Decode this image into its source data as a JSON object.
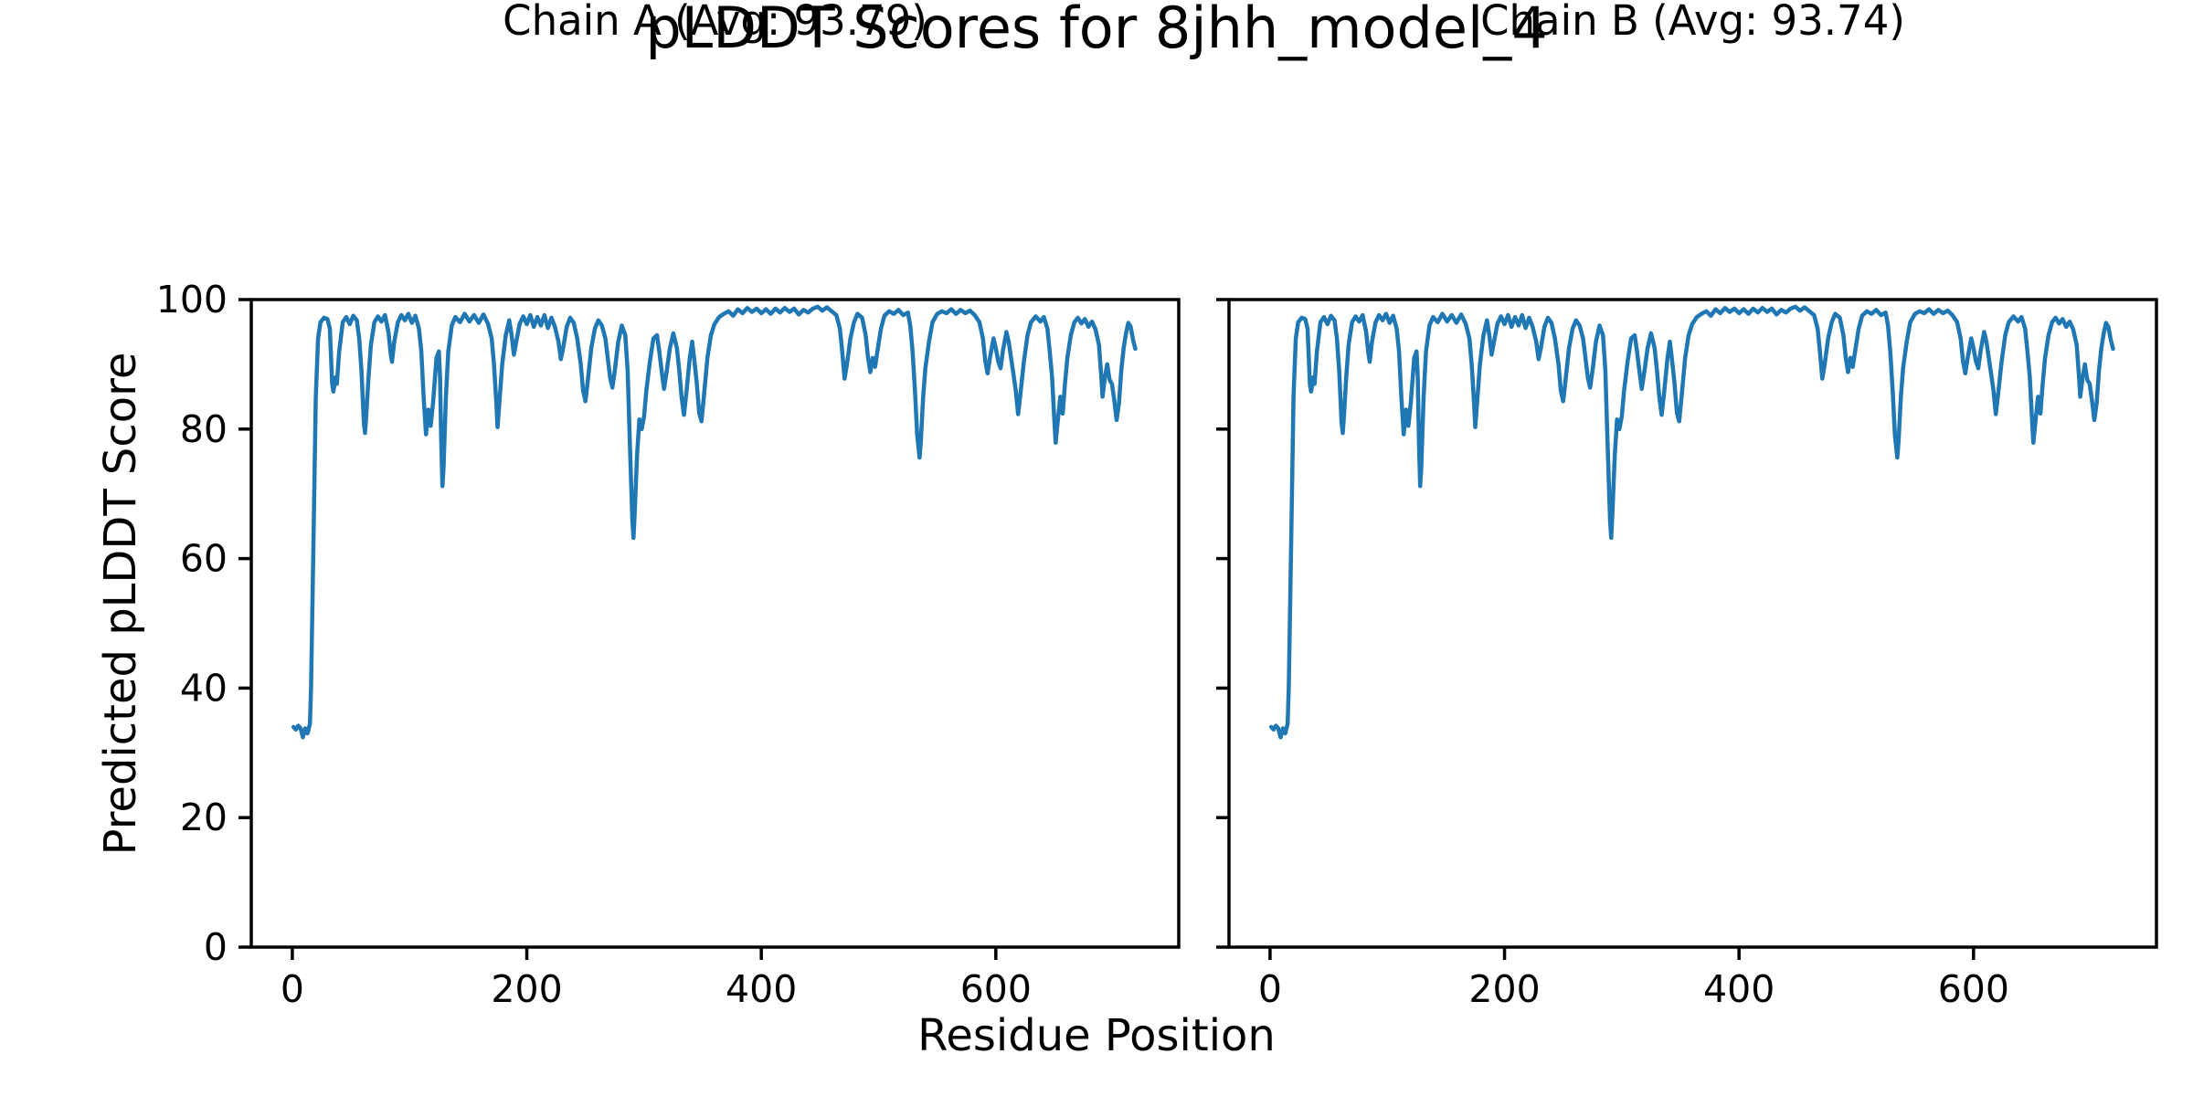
{
  "header": {
    "title": "pLDDT Scores for 8jhh_model_4"
  },
  "axes_shared": {
    "xlabel": "Residue Position",
    "ylabel": "Predicted pLDDT Score"
  },
  "colors": {
    "line": "#1f77b4",
    "axis": "#000000",
    "text": "#000000",
    "background": "#ffffff"
  },
  "chart_data": [
    {
      "type": "line",
      "title": "Chain A (Avg: 93.79)",
      "avg": "93.79",
      "xlabel": "Residue Position",
      "ylabel": "Predicted pLDDT Score",
      "xlim": [
        -35,
        756
      ],
      "ylim": [
        0,
        100
      ],
      "xticks": [
        0,
        200,
        400,
        600
      ],
      "yticks": [
        0,
        20,
        40,
        60,
        80,
        100
      ],
      "show_ytick_labels": true,
      "grid": false,
      "legend": "none",
      "x": [
        1,
        3,
        5,
        7,
        9,
        11,
        13,
        15,
        16,
        18,
        20,
        22,
        24,
        27,
        30,
        32,
        34,
        35,
        37,
        38,
        40,
        43,
        46,
        49,
        52,
        55,
        57,
        59,
        61,
        62,
        63,
        65,
        67,
        70,
        73,
        76,
        79,
        82,
        84,
        85,
        87,
        90,
        93,
        96,
        99,
        102,
        105,
        108,
        110,
        112,
        114,
        116,
        118,
        120,
        123,
        125,
        126,
        127,
        128,
        129,
        131,
        133,
        136,
        139,
        143,
        147,
        151,
        155,
        159,
        163,
        167,
        170,
        172,
        174,
        175,
        177,
        179,
        182,
        185,
        187,
        189,
        191,
        194,
        197,
        200,
        203,
        206,
        209,
        212,
        215,
        218,
        221,
        224,
        227,
        229,
        231,
        234,
        237,
        240,
        243,
        246,
        248,
        250,
        252,
        255,
        258,
        261,
        264,
        267,
        269,
        271,
        273,
        275,
        278,
        281,
        284,
        286,
        288,
        290,
        291,
        292,
        294,
        296,
        298,
        300,
        302,
        305,
        308,
        311,
        313,
        315,
        317,
        319,
        322,
        325,
        328,
        330,
        332,
        334,
        336,
        339,
        341,
        343,
        345,
        347,
        349,
        351,
        354,
        357,
        360,
        364,
        368,
        372,
        376,
        380,
        384,
        388,
        392,
        396,
        400,
        404,
        408,
        412,
        416,
        420,
        424,
        428,
        432,
        436,
        440,
        444,
        448,
        452,
        456,
        460,
        464,
        467,
        469,
        471,
        473,
        476,
        479,
        482,
        486,
        489,
        491,
        493,
        495,
        497,
        499,
        502,
        505,
        509,
        513,
        517,
        521,
        525,
        527,
        529,
        531,
        533,
        535,
        536,
        538,
        540,
        543,
        546,
        550,
        554,
        558,
        562,
        566,
        570,
        574,
        578,
        582,
        586,
        589,
        591,
        593,
        595,
        598,
        600,
        602,
        604,
        606,
        609,
        611,
        613,
        615,
        617,
        619,
        621,
        624,
        627,
        630,
        634,
        638,
        641,
        644,
        646,
        648,
        650,
        651,
        653,
        655,
        656,
        657,
        659,
        661,
        664,
        667,
        670,
        673,
        676,
        679,
        682,
        685,
        688,
        690,
        691,
        693,
        695,
        697,
        699,
        701,
        703,
        705,
        707,
        709,
        711,
        713,
        715,
        717,
        719
      ],
      "y": [
        34,
        33.6,
        34.2,
        33.8,
        32.4,
        33.8,
        33,
        34.5,
        40,
        62,
        85,
        94,
        96.5,
        97.2,
        97,
        95.5,
        87,
        85.8,
        88,
        87,
        92,
        96.5,
        97.3,
        96.2,
        97.5,
        96.8,
        94,
        89,
        81,
        79.4,
        82,
        88,
        93,
        96.5,
        97.4,
        96.6,
        97.6,
        95,
        91.5,
        90.4,
        93.5,
        96.5,
        97.6,
        96.8,
        97.8,
        96.4,
        97.5,
        95.5,
        92,
        85,
        79.2,
        83,
        80.5,
        84,
        91,
        92,
        88,
        78,
        71.2,
        74,
        85,
        92,
        96,
        97.3,
        96.5,
        97.8,
        96.6,
        97.6,
        96.4,
        97.7,
        96.2,
        94,
        90,
        84,
        80.3,
        85,
        90,
        94.5,
        96.8,
        94.5,
        91.5,
        93.5,
        96.3,
        97.4,
        96.2,
        97.6,
        95.8,
        97.3,
        96,
        97.6,
        95.6,
        97.2,
        95.8,
        93.5,
        90.8,
        92.5,
        95.8,
        97.2,
        96.4,
        94,
        90,
        86,
        84.3,
        87.5,
        92.5,
        95.5,
        96.8,
        96,
        94,
        91,
        88,
        86.4,
        89,
        93.5,
        96,
        94.5,
        89,
        77,
        66,
        63.2,
        67,
        76,
        81.5,
        80,
        82,
        86,
        90.5,
        94,
        94.5,
        92,
        89,
        86.2,
        88.5,
        92.5,
        94.8,
        92.5,
        89,
        85,
        82.2,
        85.5,
        91,
        93.5,
        90.5,
        87,
        82.5,
        81.2,
        85,
        91,
        94.5,
        96.2,
        97.3,
        97.8,
        98.2,
        97.5,
        98.5,
        97.9,
        98.7,
        98.1,
        98.6,
        97.9,
        98.5,
        97.8,
        98.6,
        98,
        98.7,
        98.1,
        98.6,
        97.7,
        98.4,
        98,
        98.6,
        98.9,
        98.3,
        98.8,
        98.2,
        97.6,
        95.5,
        92,
        87.8,
        90,
        94,
        96.5,
        97.8,
        97.2,
        94.5,
        91,
        88.8,
        91,
        89.6,
        92,
        95.5,
        97.5,
        98.2,
        97.8,
        98.4,
        97.6,
        98,
        96,
        92,
        86,
        79,
        75.6,
        78,
        85,
        89.5,
        93.5,
        96.5,
        97.8,
        98.2,
        97.9,
        98.5,
        97.8,
        98.4,
        97.9,
        98.3,
        97.6,
        96.5,
        94,
        90.5,
        88.6,
        91,
        94,
        92.5,
        90.5,
        89.4,
        92,
        95,
        93.5,
        91,
        88.5,
        86,
        82.3,
        85.5,
        90.5,
        94.5,
        96.5,
        97.4,
        96.6,
        97.3,
        95.5,
        92,
        88,
        81,
        77.9,
        81.5,
        85,
        83,
        82.4,
        87,
        91,
        94.5,
        96.5,
        97.2,
        96.3,
        97,
        95.8,
        96.6,
        95.4,
        93,
        88,
        85,
        88,
        90,
        87.6,
        87,
        84.5,
        81.4,
        84,
        89,
        92.5,
        94.8,
        96.4,
        95.8,
        93.8,
        92.4
      ]
    },
    {
      "type": "line",
      "title": "Chain B (Avg: 93.74)",
      "avg": "93.74",
      "xlabel": "Residue Position",
      "ylabel": "Predicted pLDDT Score",
      "xlim": [
        -35,
        756
      ],
      "ylim": [
        0,
        100
      ],
      "xticks": [
        0,
        200,
        400,
        600
      ],
      "yticks": [
        0,
        20,
        40,
        60,
        80,
        100
      ],
      "show_ytick_labels": false,
      "grid": false,
      "legend": "none",
      "x": [
        1,
        3,
        5,
        7,
        9,
        11,
        13,
        15,
        16,
        18,
        20,
        22,
        24,
        27,
        30,
        32,
        34,
        35,
        37,
        38,
        40,
        43,
        46,
        49,
        52,
        55,
        57,
        59,
        61,
        62,
        63,
        65,
        67,
        70,
        73,
        76,
        79,
        82,
        84,
        85,
        87,
        90,
        93,
        96,
        99,
        102,
        105,
        108,
        110,
        112,
        114,
        116,
        118,
        120,
        123,
        125,
        126,
        127,
        128,
        129,
        131,
        133,
        136,
        139,
        143,
        147,
        151,
        155,
        159,
        163,
        167,
        170,
        172,
        174,
        175,
        177,
        179,
        182,
        185,
        187,
        189,
        191,
        194,
        197,
        200,
        203,
        206,
        209,
        212,
        215,
        218,
        221,
        224,
        227,
        229,
        231,
        234,
        237,
        240,
        243,
        246,
        248,
        250,
        252,
        255,
        258,
        261,
        264,
        267,
        269,
        271,
        273,
        275,
        278,
        281,
        284,
        286,
        288,
        290,
        291,
        292,
        294,
        296,
        298,
        300,
        302,
        305,
        308,
        311,
        313,
        315,
        317,
        319,
        322,
        325,
        328,
        330,
        332,
        334,
        336,
        339,
        341,
        343,
        345,
        347,
        349,
        351,
        354,
        357,
        360,
        364,
        368,
        372,
        376,
        380,
        384,
        388,
        392,
        396,
        400,
        404,
        408,
        412,
        416,
        420,
        424,
        428,
        432,
        436,
        440,
        444,
        448,
        452,
        456,
        460,
        464,
        467,
        469,
        471,
        473,
        476,
        479,
        482,
        486,
        489,
        491,
        493,
        495,
        497,
        499,
        502,
        505,
        509,
        513,
        517,
        521,
        525,
        527,
        529,
        531,
        533,
        535,
        536,
        538,
        540,
        543,
        546,
        550,
        554,
        558,
        562,
        566,
        570,
        574,
        578,
        582,
        586,
        589,
        591,
        593,
        595,
        598,
        600,
        602,
        604,
        606,
        609,
        611,
        613,
        615,
        617,
        619,
        621,
        624,
        627,
        630,
        634,
        638,
        641,
        644,
        646,
        648,
        650,
        651,
        653,
        655,
        656,
        657,
        659,
        661,
        664,
        667,
        670,
        673,
        676,
        679,
        682,
        685,
        688,
        690,
        691,
        693,
        695,
        697,
        699,
        701,
        703,
        705,
        707,
        709,
        711,
        713,
        715,
        717,
        719
      ],
      "y": [
        34,
        33.6,
        34.2,
        33.8,
        32.4,
        33.8,
        33,
        34.5,
        40,
        62,
        85,
        94,
        96.5,
        97.2,
        97,
        95.5,
        87,
        85.8,
        88,
        87,
        92,
        96.5,
        97.3,
        96.2,
        97.5,
        96.8,
        94,
        89,
        81,
        79.4,
        82,
        88,
        93,
        96.5,
        97.4,
        96.6,
        97.6,
        95,
        91.5,
        90.4,
        93.5,
        96.5,
        97.6,
        96.8,
        97.8,
        96.4,
        97.5,
        95.5,
        92,
        85,
        79.2,
        83,
        80.5,
        84,
        91,
        92,
        88,
        78,
        71.2,
        74,
        85,
        92,
        96,
        97.3,
        96.5,
        97.8,
        96.6,
        97.6,
        96.4,
        97.7,
        96.2,
        94,
        90,
        84,
        80.3,
        85,
        90,
        94.5,
        96.8,
        94.5,
        91.5,
        93.5,
        96.3,
        97.4,
        96.2,
        97.6,
        95.8,
        97.3,
        96,
        97.6,
        95.6,
        97.2,
        95.8,
        93.5,
        90.8,
        92.5,
        95.8,
        97.2,
        96.4,
        94,
        90,
        86,
        84.3,
        87.5,
        92.5,
        95.5,
        96.8,
        96,
        94,
        91,
        88,
        86.4,
        89,
        93.5,
        96,
        94.5,
        89,
        77,
        66,
        63.2,
        67,
        76,
        81.5,
        80,
        82,
        86,
        90.5,
        94,
        94.5,
        92,
        89,
        86.2,
        88.5,
        92.5,
        94.8,
        92.5,
        89,
        85,
        82.2,
        85.5,
        91,
        93.5,
        90.5,
        87,
        82.5,
        81.2,
        85,
        91,
        94.5,
        96.2,
        97.3,
        97.8,
        98.2,
        97.5,
        98.5,
        97.9,
        98.7,
        98.1,
        98.6,
        97.9,
        98.5,
        97.8,
        98.6,
        98,
        98.7,
        98.1,
        98.6,
        97.7,
        98.4,
        98,
        98.6,
        98.9,
        98.3,
        98.8,
        98.2,
        97.6,
        95.5,
        92,
        87.8,
        90,
        94,
        96.5,
        97.8,
        97.2,
        94.5,
        91,
        88.8,
        91,
        89.6,
        92,
        95.5,
        97.5,
        98.2,
        97.8,
        98.4,
        97.6,
        98,
        96,
        92,
        86,
        79,
        75.6,
        78,
        85,
        89.5,
        93.5,
        96.5,
        97.8,
        98.2,
        97.9,
        98.5,
        97.8,
        98.4,
        97.9,
        98.3,
        97.6,
        96.5,
        94,
        90.5,
        88.6,
        91,
        94,
        92.5,
        90.5,
        89.4,
        92,
        95,
        93.5,
        91,
        88.5,
        86,
        82.3,
        85.5,
        90.5,
        94.5,
        96.5,
        97.4,
        96.6,
        97.3,
        95.5,
        92,
        88,
        81,
        77.9,
        81.5,
        85,
        83,
        82.4,
        87,
        91,
        94.5,
        96.5,
        97.2,
        96.3,
        97,
        95.8,
        96.6,
        95.4,
        93,
        88,
        85,
        88,
        90,
        87.6,
        87,
        84.5,
        81.4,
        84,
        89,
        92.5,
        94.8,
        96.4,
        95.8,
        93.8,
        92.4
      ]
    }
  ]
}
